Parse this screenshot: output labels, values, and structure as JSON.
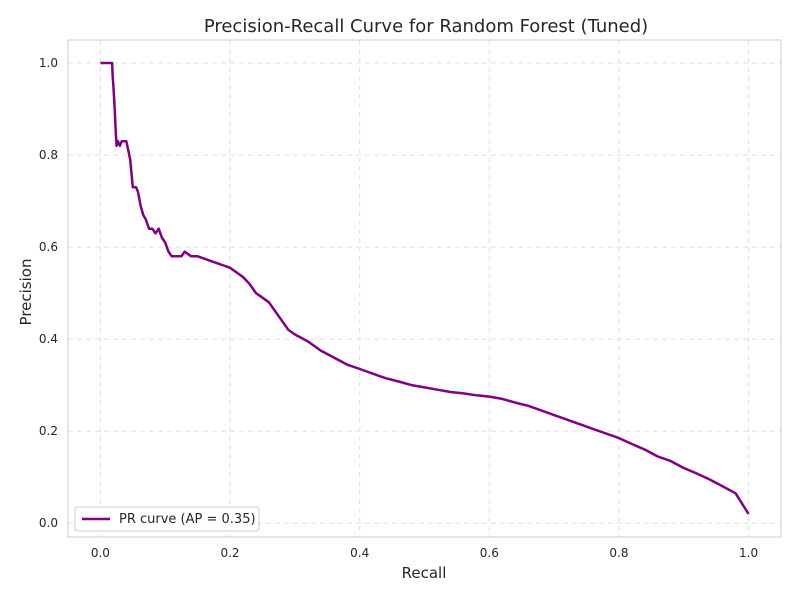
{
  "chart_data": {
    "type": "line",
    "title": "Precision-Recall Curve for Random Forest (Tuned)",
    "xlabel": "Recall",
    "ylabel": "Precision",
    "xlim": [
      -0.05,
      1.05
    ],
    "ylim": [
      -0.03,
      1.05
    ],
    "xticks": [
      0.0,
      0.2,
      0.4,
      0.6,
      0.8,
      1.0
    ],
    "xtick_labels": [
      "0.0",
      "0.2",
      "0.4",
      "0.6",
      "0.8",
      "1.0"
    ],
    "yticks": [
      0.0,
      0.2,
      0.4,
      0.6,
      0.8,
      1.0
    ],
    "ytick_labels": [
      "0.0",
      "0.2",
      "0.4",
      "0.6",
      "0.8",
      "1.0"
    ],
    "grid": true,
    "legend_position": "lower-left",
    "series": [
      {
        "name": "PR curve (AP = 0.35)",
        "color": "#800080",
        "x": [
          0.0,
          0.018,
          0.019,
          0.02,
          0.022,
          0.024,
          0.025,
          0.027,
          0.03,
          0.033,
          0.036,
          0.04,
          0.043,
          0.046,
          0.048,
          0.05,
          0.052,
          0.055,
          0.058,
          0.062,
          0.066,
          0.07,
          0.075,
          0.08,
          0.085,
          0.09,
          0.095,
          0.1,
          0.105,
          0.11,
          0.115,
          0.12,
          0.125,
          0.13,
          0.14,
          0.15,
          0.16,
          0.17,
          0.18,
          0.19,
          0.2,
          0.21,
          0.22,
          0.23,
          0.24,
          0.25,
          0.26,
          0.27,
          0.28,
          0.29,
          0.3,
          0.32,
          0.34,
          0.36,
          0.38,
          0.4,
          0.42,
          0.44,
          0.46,
          0.48,
          0.5,
          0.52,
          0.54,
          0.56,
          0.58,
          0.6,
          0.62,
          0.64,
          0.66,
          0.68,
          0.7,
          0.72,
          0.74,
          0.76,
          0.78,
          0.8,
          0.82,
          0.84,
          0.86,
          0.88,
          0.9,
          0.92,
          0.94,
          0.96,
          0.98,
          1.0
        ],
        "y": [
          1.0,
          1.0,
          0.97,
          0.95,
          0.9,
          0.84,
          0.82,
          0.83,
          0.82,
          0.83,
          0.83,
          0.83,
          0.81,
          0.79,
          0.76,
          0.73,
          0.73,
          0.73,
          0.72,
          0.69,
          0.67,
          0.66,
          0.64,
          0.64,
          0.63,
          0.64,
          0.62,
          0.61,
          0.59,
          0.58,
          0.58,
          0.58,
          0.58,
          0.59,
          0.58,
          0.58,
          0.575,
          0.57,
          0.565,
          0.56,
          0.555,
          0.545,
          0.535,
          0.52,
          0.5,
          0.49,
          0.48,
          0.46,
          0.44,
          0.42,
          0.41,
          0.395,
          0.375,
          0.36,
          0.345,
          0.335,
          0.325,
          0.315,
          0.308,
          0.3,
          0.295,
          0.29,
          0.285,
          0.282,
          0.278,
          0.275,
          0.27,
          0.262,
          0.255,
          0.245,
          0.235,
          0.225,
          0.215,
          0.205,
          0.195,
          0.185,
          0.172,
          0.16,
          0.145,
          0.135,
          0.12,
          0.108,
          0.095,
          0.08,
          0.065,
          0.02
        ]
      }
    ]
  }
}
